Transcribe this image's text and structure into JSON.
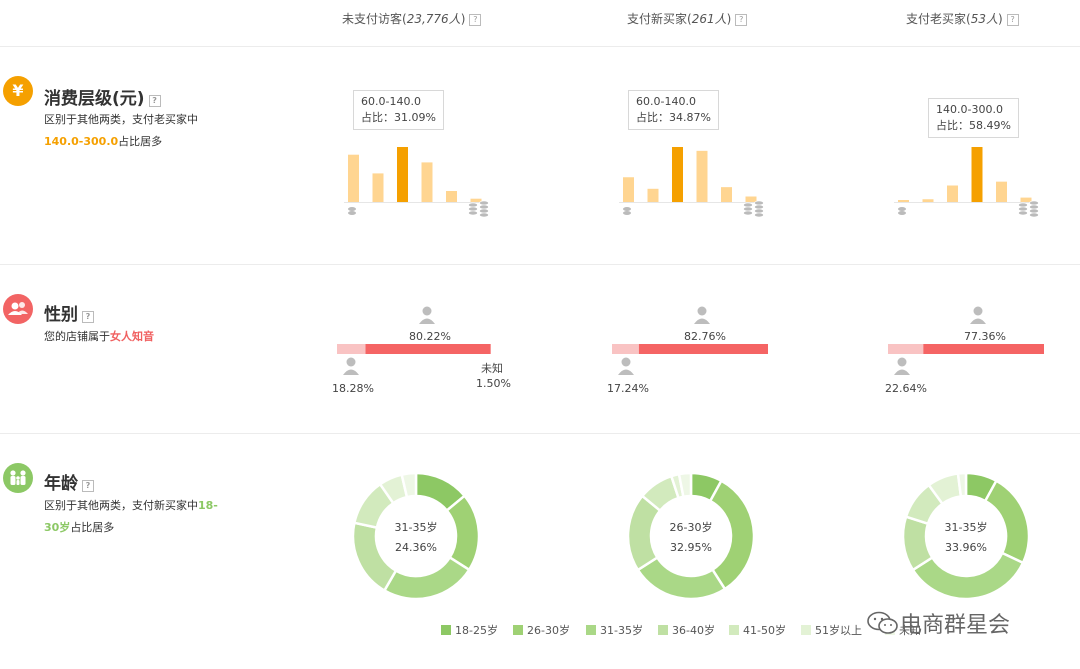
{
  "columns": [
    {
      "label": "未支付访客(",
      "count": "23,776人",
      "suffix": ")"
    },
    {
      "label": "支付新买家(",
      "count": "261人",
      "suffix": ")"
    },
    {
      "label": "支付老买家(",
      "count": "53人",
      "suffix": ")"
    }
  ],
  "help_glyph": "?",
  "spend": {
    "icon_glyph": "¥",
    "title": "消费层级(元)",
    "desc_line1": "区别于其他两类，支付老买家中",
    "desc_highlight": "140.0-300.0",
    "desc_line2_suffix": "占比居多",
    "charts": [
      {
        "tooltip_range": "60.0-140.0",
        "tooltip_ratio": "占比：31.09%",
        "values": [
          0.86,
          0.52,
          1.0,
          0.72,
          0.2,
          0.06
        ],
        "highlight": 2
      },
      {
        "tooltip_range": "60.0-140.0",
        "tooltip_ratio": "占比：34.87%",
        "values": [
          0.45,
          0.24,
          1.0,
          0.93,
          0.27,
          0.1
        ],
        "highlight": 2
      },
      {
        "tooltip_range": "140.0-300.0",
        "tooltip_ratio": "占比：58.49%",
        "values": [
          0.03,
          0.05,
          0.3,
          1.0,
          0.37,
          0.08
        ],
        "highlight": 3
      }
    ]
  },
  "gender": {
    "title": "性别",
    "desc_prefix": "您的店铺属于",
    "desc_highlight": "女人知音",
    "columns": [
      {
        "female_pct": "80.22%",
        "male_pct": "18.28%",
        "unknown_label": "未知",
        "unknown_pct": "1.50%",
        "female": 80.22,
        "male": 18.28
      },
      {
        "female_pct": "82.76%",
        "male_pct": "17.24%",
        "female": 82.76,
        "male": 17.24
      },
      {
        "female_pct": "77.36%",
        "male_pct": "22.64%",
        "female": 77.36,
        "male": 22.64
      }
    ]
  },
  "age": {
    "title": "年龄",
    "desc_line1_prefix": "区别于其他两类，支付新买家中",
    "desc_line1_highlight": "18-",
    "desc_line2_highlight": "30岁",
    "desc_line2_suffix": "占比居多",
    "donuts": [
      {
        "center_label": "31-35岁",
        "center_pct": "24.36%",
        "segments": [
          14,
          20,
          24.36,
          20,
          12,
          6,
          3.64
        ]
      },
      {
        "center_label": "26-30岁",
        "center_pct": "32.95%",
        "segments": [
          8,
          32.95,
          25,
          20,
          9,
          2,
          3.05
        ]
      },
      {
        "center_label": "31-35岁",
        "center_pct": "33.96%",
        "segments": [
          8,
          24,
          33.96,
          14,
          10,
          8,
          2.04
        ]
      }
    ],
    "legend": [
      "18-25岁",
      "26-30岁",
      "31-35岁",
      "36-40岁",
      "41-50岁",
      "51岁以上",
      "未知"
    ]
  },
  "colors": {
    "bar_light": "#ffd591",
    "bar_highlight": "#f5a000",
    "female_red": "#f56464",
    "male_pink": "#f9c3c3",
    "donut": [
      "#8dc864",
      "#9fd174",
      "#aad887",
      "#bfe0a3",
      "#d2eabd",
      "#e3f2d5",
      "#eef7e6"
    ]
  },
  "watermark": "电商群星会"
}
